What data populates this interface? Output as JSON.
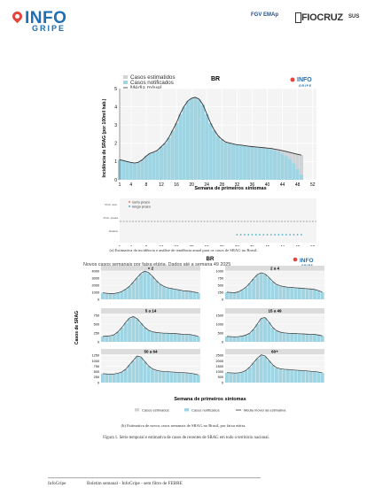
{
  "header": {
    "logo_info": "INFO",
    "logo_gripe": "GRIPE",
    "fgv_label": "FGV EMAp",
    "fiocruz_label": "FIOCRUZ",
    "sus_label": "SUS"
  },
  "figure_a": {
    "title": "BR",
    "legend": [
      "Casos estimatidos",
      "Casos notificados",
      "Média móvel",
      "da estimativa"
    ],
    "ylabel": "Incidência de SRAG (por 100mil hab.)",
    "xlabel": "Semana de primeiros sintomas",
    "xticks": [
      "1",
      "4",
      "8",
      "12",
      "16",
      "20",
      "24",
      "28",
      "32",
      "36",
      "40",
      "44",
      "48",
      "52"
    ],
    "yticks": [
      "0",
      "1",
      "2",
      "3",
      "4",
      "5"
    ],
    "trend_legend": [
      "curto prazo",
      "longo prazo"
    ],
    "trend_ylabels": [
      "Prob. aum.",
      "Prob. queda",
      "Estável"
    ],
    "caption": "(a) Estimativa da incidência e análise de tendência anual para os casos de SRAG no Brasil."
  },
  "figure_b": {
    "title": "BR",
    "subtitle": "Novos casos semanais por faixa etária. Dados até a semana 49 2025",
    "ylabel": "Casos de SRAG",
    "xlabel": "Semana de primeiros sintomas",
    "legend": [
      "Casos estimados",
      "Casos notificados",
      "Média móvel da estimativa"
    ],
    "caption": "(b) Estimativa de novos casos semanais de SRAG no Brasil, por faixa etária."
  },
  "chart_data": [
    {
      "type": "bar",
      "title": "BR",
      "xlabel": "Semana de primeiros sintomas",
      "ylabel": "Incidência de SRAG (por 100mil hab.)",
      "ylim": [
        0,
        5
      ],
      "xlim": [
        1,
        52
      ],
      "x": [
        1,
        2,
        3,
        4,
        5,
        6,
        7,
        8,
        9,
        10,
        11,
        12,
        13,
        14,
        15,
        16,
        17,
        18,
        19,
        20,
        21,
        22,
        23,
        24,
        25,
        26,
        27,
        28,
        29,
        30,
        31,
        32,
        33,
        34,
        35,
        36,
        37,
        38,
        39,
        40,
        41,
        42,
        43,
        44,
        45,
        46,
        47,
        48,
        49
      ],
      "series": [
        {
          "name": "Casos notificados",
          "values": [
            1.1,
            1.05,
            1.0,
            0.95,
            0.9,
            0.95,
            1.1,
            1.3,
            1.45,
            1.5,
            1.6,
            1.8,
            2.0,
            2.3,
            2.7,
            3.1,
            3.6,
            4.0,
            4.3,
            4.45,
            4.5,
            4.4,
            4.1,
            3.6,
            3.1,
            2.7,
            2.4,
            2.2,
            2.05,
            2.0,
            1.95,
            1.9,
            1.88,
            1.85,
            1.82,
            1.8,
            1.78,
            1.75,
            1.72,
            1.7,
            1.68,
            1.62,
            1.55,
            1.45,
            1.3,
            1.15,
            0.9,
            0.6,
            0.3
          ]
        },
        {
          "name": "Média móvel da estimativa",
          "values": [
            1.1,
            1.05,
            1.0,
            0.95,
            0.92,
            0.97,
            1.1,
            1.3,
            1.45,
            1.52,
            1.62,
            1.82,
            2.02,
            2.32,
            2.72,
            3.12,
            3.62,
            4.02,
            4.32,
            4.47,
            4.52,
            4.42,
            4.12,
            3.62,
            3.12,
            2.72,
            2.42,
            2.22,
            2.07,
            2.02,
            1.97,
            1.92,
            1.9,
            1.87,
            1.84,
            1.82,
            1.8,
            1.78,
            1.76,
            1.74,
            1.72,
            1.68,
            1.64,
            1.6,
            1.55,
            1.5,
            1.45,
            1.4,
            1.35
          ]
        }
      ]
    },
    {
      "type": "area",
      "title": "BR",
      "xlabel": "Semana de primeiros sintomas",
      "ylabel": "Casos de SRAG",
      "panels": [
        {
          "name": "< 2",
          "yticks": [
            "0",
            "1000",
            "2000",
            "3000",
            "4000"
          ],
          "ymax": 4000,
          "values": [
            900,
            850,
            800,
            820,
            900,
            1100,
            1400,
            1800,
            2400,
            3000,
            3600,
            3900,
            3700,
            3200,
            2600,
            2100,
            1800,
            1600,
            1500,
            1400,
            1300,
            1200,
            1150,
            1100,
            1000,
            900
          ]
        },
        {
          "name": "2 a 4",
          "yticks": [
            "0",
            "250",
            "500",
            "750",
            "1000"
          ],
          "ymax": 1000,
          "values": [
            250,
            240,
            230,
            260,
            330,
            420,
            560,
            720,
            860,
            920,
            880,
            760,
            620,
            520,
            470,
            440,
            420,
            410,
            400,
            390,
            380,
            370,
            360,
            340,
            300,
            250
          ]
        },
        {
          "name": "5 a 14",
          "yticks": [
            "0",
            "250",
            "500",
            "750"
          ],
          "ymax": 800,
          "values": [
            150,
            160,
            170,
            200,
            280,
            400,
            540,
            660,
            700,
            640,
            520,
            400,
            320,
            280,
            260,
            250,
            240,
            240,
            230,
            230,
            220,
            210,
            210,
            200,
            180,
            150
          ]
        },
        {
          "name": "15 a 49",
          "yticks": [
            "0",
            "500",
            "1000",
            "1500"
          ],
          "ymax": 1600,
          "values": [
            300,
            290,
            280,
            290,
            320,
            380,
            480,
            700,
            1000,
            1300,
            1350,
            1100,
            800,
            620,
            540,
            500,
            480,
            470,
            460,
            450,
            440,
            430,
            420,
            410,
            380,
            330
          ]
        },
        {
          "name": "50 a 64",
          "yticks": [
            "0",
            "250",
            "500",
            "750",
            "1000",
            "1250"
          ],
          "ymax": 1300,
          "values": [
            400,
            390,
            380,
            390,
            420,
            480,
            600,
            800,
            1000,
            1200,
            1150,
            950,
            750,
            620,
            560,
            520,
            500,
            490,
            480,
            470,
            460,
            450,
            440,
            420,
            390,
            350
          ]
        },
        {
          "name": "60+",
          "yticks": [
            "0",
            "500",
            "1000",
            "1500",
            "2000",
            "2500"
          ],
          "ymax": 2600,
          "values": [
            900,
            880,
            860,
            880,
            950,
            1100,
            1400,
            1800,
            2200,
            2500,
            2400,
            2000,
            1600,
            1350,
            1250,
            1200,
            1180,
            1150,
            1120,
            1100,
            1080,
            1050,
            1020,
            1000,
            950,
            880
          ]
        }
      ],
      "legend": [
        "Casos estimados",
        "Casos notificados",
        "Média móvel da estimativa"
      ]
    }
  ],
  "figure_caption": "Figura 1. Série temporal e estimativa de casos de recentes de SRAG em todo o território nacional.",
  "footer": {
    "left": "InfoGripe",
    "center": "Boletim semanal - InfoGripe - sem filtro de FEBRE"
  },
  "colors": {
    "bar": "#9fd4e3",
    "estimate": "#cfd3d6",
    "line": "#333333",
    "brand": "#1f6fb2",
    "short_term": "#e8736b",
    "long_term": "#4ab0c4"
  }
}
